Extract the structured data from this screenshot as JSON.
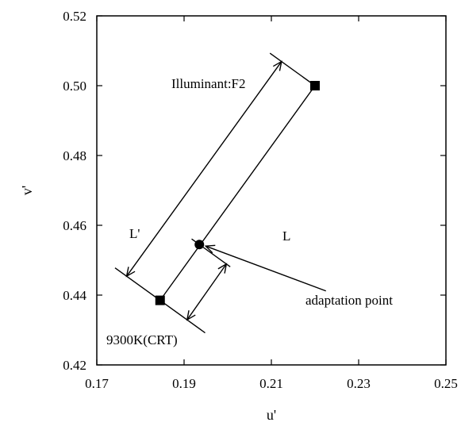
{
  "chart_data": {
    "type": "scatter",
    "title": "",
    "xlabel": "u'",
    "ylabel": "v'",
    "xlim": [
      0.17,
      0.25
    ],
    "ylim": [
      0.42,
      0.52
    ],
    "x_ticks": [
      "0.17",
      "0.19",
      "0.21",
      "0.23",
      "0.25"
    ],
    "y_ticks": [
      "0.42",
      "0.44",
      "0.46",
      "0.48",
      "0.50",
      "0.52"
    ],
    "x_tick_values": [
      0.17,
      0.19,
      0.21,
      0.23,
      0.25
    ],
    "y_tick_values": [
      0.42,
      0.44,
      0.46,
      0.48,
      0.5,
      0.52
    ],
    "points": [
      {
        "label": "Illuminant:F2",
        "x": 0.22,
        "y": 0.5,
        "marker": "square"
      },
      {
        "label": "9300K(CRT)",
        "x": 0.1845,
        "y": 0.4385,
        "marker": "square"
      },
      {
        "label": "adaptation point",
        "x": 0.1935,
        "y": 0.4545,
        "marker": "circle"
      }
    ],
    "annotations": {
      "illuminant": "Illuminant:F2",
      "crt": "9300K(CRT)",
      "adaptation": "adaptation point",
      "L": "L",
      "L_prime": "L'"
    }
  }
}
